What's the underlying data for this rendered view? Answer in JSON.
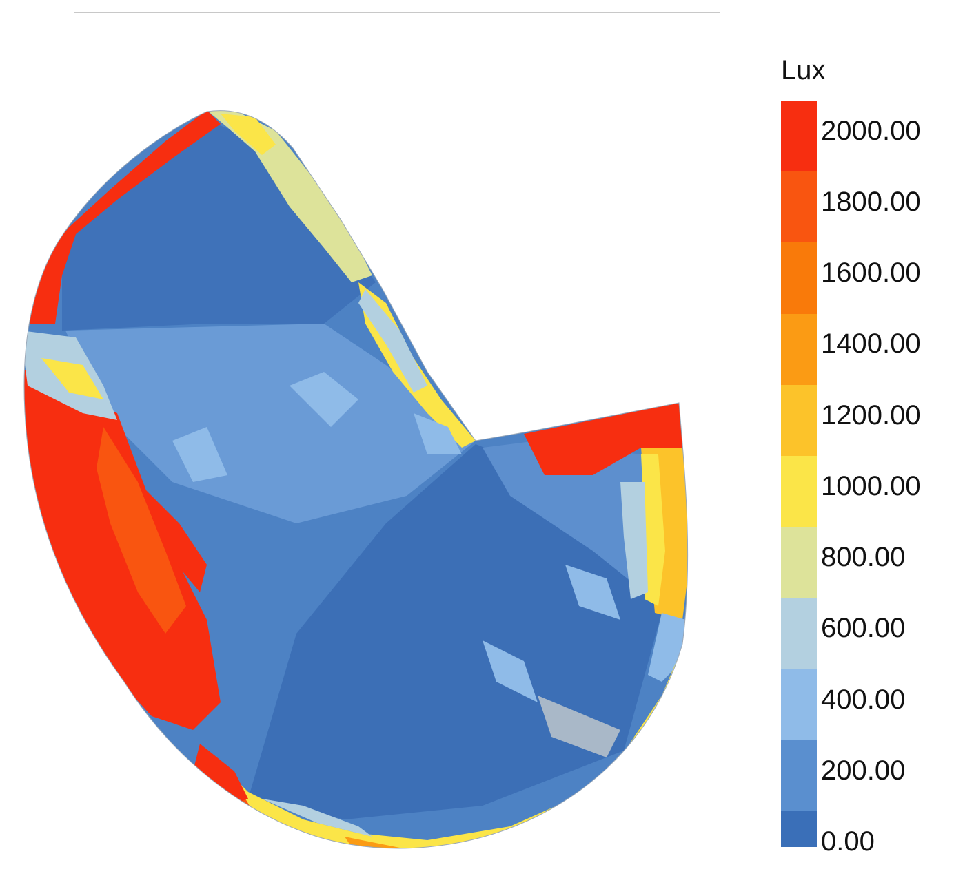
{
  "chart_data": {
    "type": "heatmap",
    "legend": {
      "title": "Lux",
      "placement": "right",
      "ticks": [
        "0.00",
        "200.00",
        "400.00",
        "600.00",
        "800.00",
        "1000.00",
        "1200.00",
        "1400.00",
        "1600.00",
        "1800.00",
        "2000.00"
      ],
      "bins": [
        {
          "min": 0,
          "max": 100,
          "color": "#3a6fb8"
        },
        {
          "min": 100,
          "max": 300,
          "color": "#5a8fcf"
        },
        {
          "min": 300,
          "max": 500,
          "color": "#8fbbe8"
        },
        {
          "min": 500,
          "max": 700,
          "color": "#b3d0e0"
        },
        {
          "min": 700,
          "max": 900,
          "color": "#dde39a"
        },
        {
          "min": 900,
          "max": 1100,
          "color": "#fbe548"
        },
        {
          "min": 1100,
          "max": 1300,
          "color": "#fcc32a"
        },
        {
          "min": 1300,
          "max": 1500,
          "color": "#fb9b14"
        },
        {
          "min": 1500,
          "max": 1700,
          "color": "#f97a0a"
        },
        {
          "min": 1700,
          "max": 1900,
          "color": "#f95510"
        },
        {
          "min": 1900,
          "max": 2100,
          "color": "#f72e10"
        }
      ]
    },
    "colorbar_range": [
      0,
      2100
    ]
  }
}
